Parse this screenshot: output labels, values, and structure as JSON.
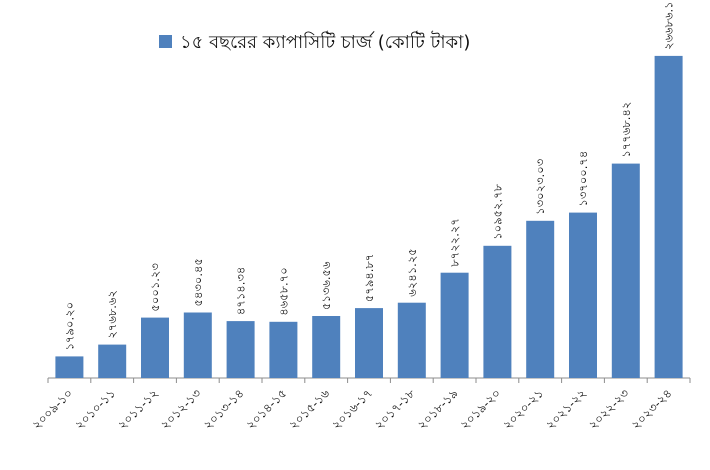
{
  "chart_data": {
    "type": "bar",
    "title": "",
    "xlabel": "",
    "ylabel": "",
    "legend": {
      "position": "top"
    },
    "grid": false,
    "ylim": [
      0,
      29000
    ],
    "categories": [
      "২০০৯-১০",
      "২০১০-১১",
      "২০১১-১২",
      "২০১২-১৩",
      "২০১৩-১৪",
      "২০১৪-১৫",
      "২০১৫-১৬",
      "২০১৬-১৭",
      "২০১৭-১৮",
      "২০১৮-১৯",
      "২০১৯-২০",
      "২০২০-২১",
      "২০২১-২২",
      "২০২২-২৩",
      "২০২৩-২৪"
    ],
    "series": [
      {
        "name": "১৫ বছরের ক্যাপাসিটি চার্জ (কোটি টাকা)",
        "color": "#4F81BD",
        "values": [
          1790.2,
          2768.62,
          5001.23,
          5430.45,
          4714.34,
          4658.7,
          5136.56,
          5794.87,
          6241.25,
          8722.27,
          10952.78,
          13023.03,
          13700.74,
          17768.42,
          26686.14
        ],
        "labels": [
          "১৭৯০.২০",
          "২৭৬৮.৬২",
          "৫০০১.২৩",
          "৫৪৩০.৪৫",
          "৪৭১৪.৩৪",
          "৪৬৫৮.৭০",
          "৫১৩৬.৫৬",
          "৫৭৯৪.৮৭",
          "৬২৪১.২৫",
          "৮৭২২.২৭",
          "১০৯৫২.৭৮",
          "১৩০২৩.০৩",
          "১৩৭০০.৭৪",
          "১৭৭৬৮.৪২",
          "২৬৬৮৬.১৪"
        ]
      }
    ]
  }
}
